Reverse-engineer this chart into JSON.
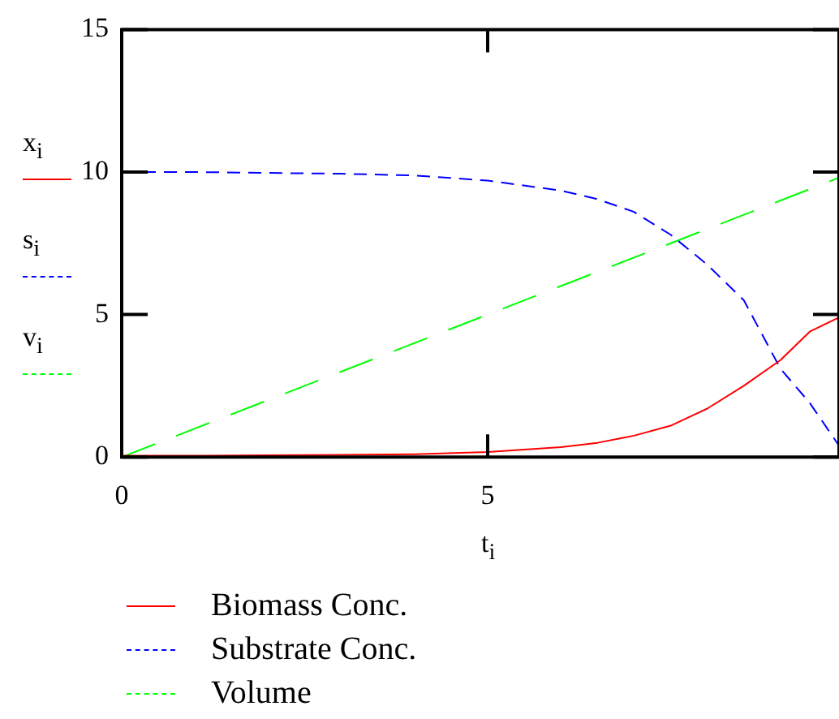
{
  "chart_data": {
    "type": "line",
    "xlabel": "t$_{i}$",
    "annotations": [
      "x$_{i}$",
      "s$_{i}$",
      "v$_{i}$"
    ],
    "xlim": [
      0,
      9.8
    ],
    "xticks": [
      0,
      5
    ],
    "ylim": [
      0,
      15
    ],
    "yticks": [
      0,
      5,
      10,
      15
    ],
    "grid": false,
    "legend": "bottom left",
    "marker": "none",
    "series": [
      {
        "name": "Biomass Conc.",
        "color": "#ff0000",
        "line_style": "solid",
        "x": [
          0,
          1,
          2,
          3,
          4,
          5,
          6,
          6.5,
          7,
          7.5,
          8,
          8.5,
          9,
          9.4,
          9.8
        ],
        "values": [
          0.05,
          0.05,
          0.06,
          0.08,
          0.1,
          0.18,
          0.35,
          0.5,
          0.75,
          1.1,
          1.7,
          2.5,
          3.4,
          4.4,
          4.9
        ]
      },
      {
        "name": "Substrate Conc.",
        "color": "#0000ff",
        "line_style": "dashed",
        "x": [
          0,
          1,
          2,
          3,
          4,
          5,
          6,
          6.5,
          7,
          7.5,
          8,
          8.5,
          9,
          9.4,
          9.8
        ],
        "values": [
          10,
          10,
          9.97,
          9.94,
          9.88,
          9.7,
          9.35,
          9.05,
          8.6,
          7.8,
          6.75,
          5.5,
          3.1,
          1.9,
          0.4
        ]
      },
      {
        "name": "Volume",
        "color": "#00ff00",
        "line_style": "dashed",
        "x": [
          0,
          9.8
        ],
        "values": [
          0,
          9.8
        ]
      }
    ]
  }
}
